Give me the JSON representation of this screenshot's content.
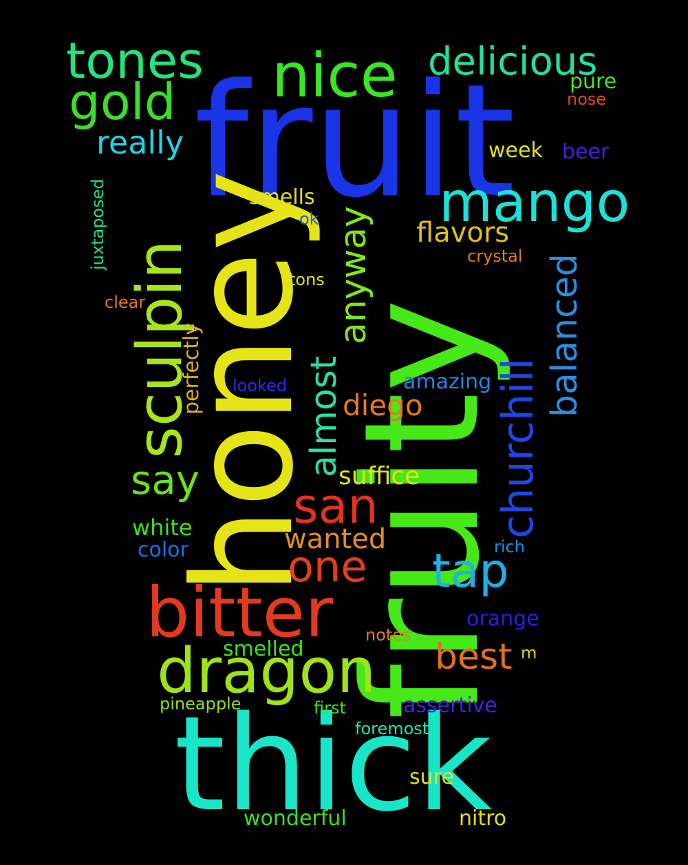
{
  "background": "#000000",
  "words": [
    {
      "text": "fruit",
      "color": "#1a34e8"
    },
    {
      "text": "fruity",
      "color": "#46e817"
    },
    {
      "text": "honey",
      "color": "#e4e416"
    },
    {
      "text": "thick",
      "color": "#18e6c8"
    },
    {
      "text": "bitter",
      "color": "#e23a1e"
    },
    {
      "text": "dragon",
      "color": "#9ee217"
    },
    {
      "text": "sculpin",
      "color": "#a7e51a"
    },
    {
      "text": "nice",
      "color": "#35e820"
    },
    {
      "text": "mango",
      "color": "#1ee1d6"
    },
    {
      "text": "tones",
      "color": "#22e47b"
    },
    {
      "text": "gold",
      "color": "#39df28"
    },
    {
      "text": "delicious",
      "color": "#1ee39a"
    },
    {
      "text": "churchill",
      "color": "#1f46e6"
    },
    {
      "text": "balanced",
      "color": "#2a8ee0"
    },
    {
      "text": "anyway",
      "color": "#7fe61a"
    },
    {
      "text": "almost",
      "color": "#2ae0a0"
    },
    {
      "text": "san",
      "color": "#e2331d"
    },
    {
      "text": "one",
      "color": "#e1401c"
    },
    {
      "text": "tap",
      "color": "#1eb1e6"
    },
    {
      "text": "say",
      "color": "#6ee219"
    },
    {
      "text": "really",
      "color": "#1ed5e6"
    },
    {
      "text": "best",
      "color": "#e2701f"
    },
    {
      "text": "flavors",
      "color": "#e2c01a"
    },
    {
      "text": "diego",
      "color": "#e67a1e"
    },
    {
      "text": "suffice",
      "color": "#e3e21a"
    },
    {
      "text": "wanted",
      "color": "#e28e1e"
    },
    {
      "text": "pure",
      "color": "#4fe21a"
    },
    {
      "text": "nose",
      "color": "#e2481a"
    },
    {
      "text": "week",
      "color": "#e4e01a"
    },
    {
      "text": "beer",
      "color": "#4a1ee0"
    },
    {
      "text": "smells",
      "color": "#e2e01a"
    },
    {
      "text": "ok",
      "color": "#1e56e6"
    },
    {
      "text": "crystal",
      "color": "#e67a1e"
    },
    {
      "text": "tons",
      "color": "#e2e01a"
    },
    {
      "text": "clear",
      "color": "#e67a1e"
    },
    {
      "text": "perfectly",
      "color": "#e2b01e"
    },
    {
      "text": "juxtaposed",
      "color": "#1ee08a"
    },
    {
      "text": "looked",
      "color": "#2a2ee6"
    },
    {
      "text": "amazing",
      "color": "#1e88e6"
    },
    {
      "text": "white",
      "color": "#3fe21a"
    },
    {
      "text": "color",
      "color": "#1e70e6"
    },
    {
      "text": "rich",
      "color": "#1e8ee0"
    },
    {
      "text": "orange",
      "color": "#2a1ee6"
    },
    {
      "text": "notes",
      "color": "#e67a1e"
    },
    {
      "text": "smelled",
      "color": "#3fe21a"
    },
    {
      "text": "m",
      "color": "#e2d01a"
    },
    {
      "text": "pineapple",
      "color": "#8ee21a"
    },
    {
      "text": "first",
      "color": "#3fe21a"
    },
    {
      "text": "assertive",
      "color": "#4a1ee6"
    },
    {
      "text": "foremost",
      "color": "#1ee6b0"
    },
    {
      "text": "sure",
      "color": "#e2e01a"
    },
    {
      "text": "wonderful",
      "color": "#3fe21a"
    },
    {
      "text": "nitro",
      "color": "#e2e01a"
    }
  ]
}
